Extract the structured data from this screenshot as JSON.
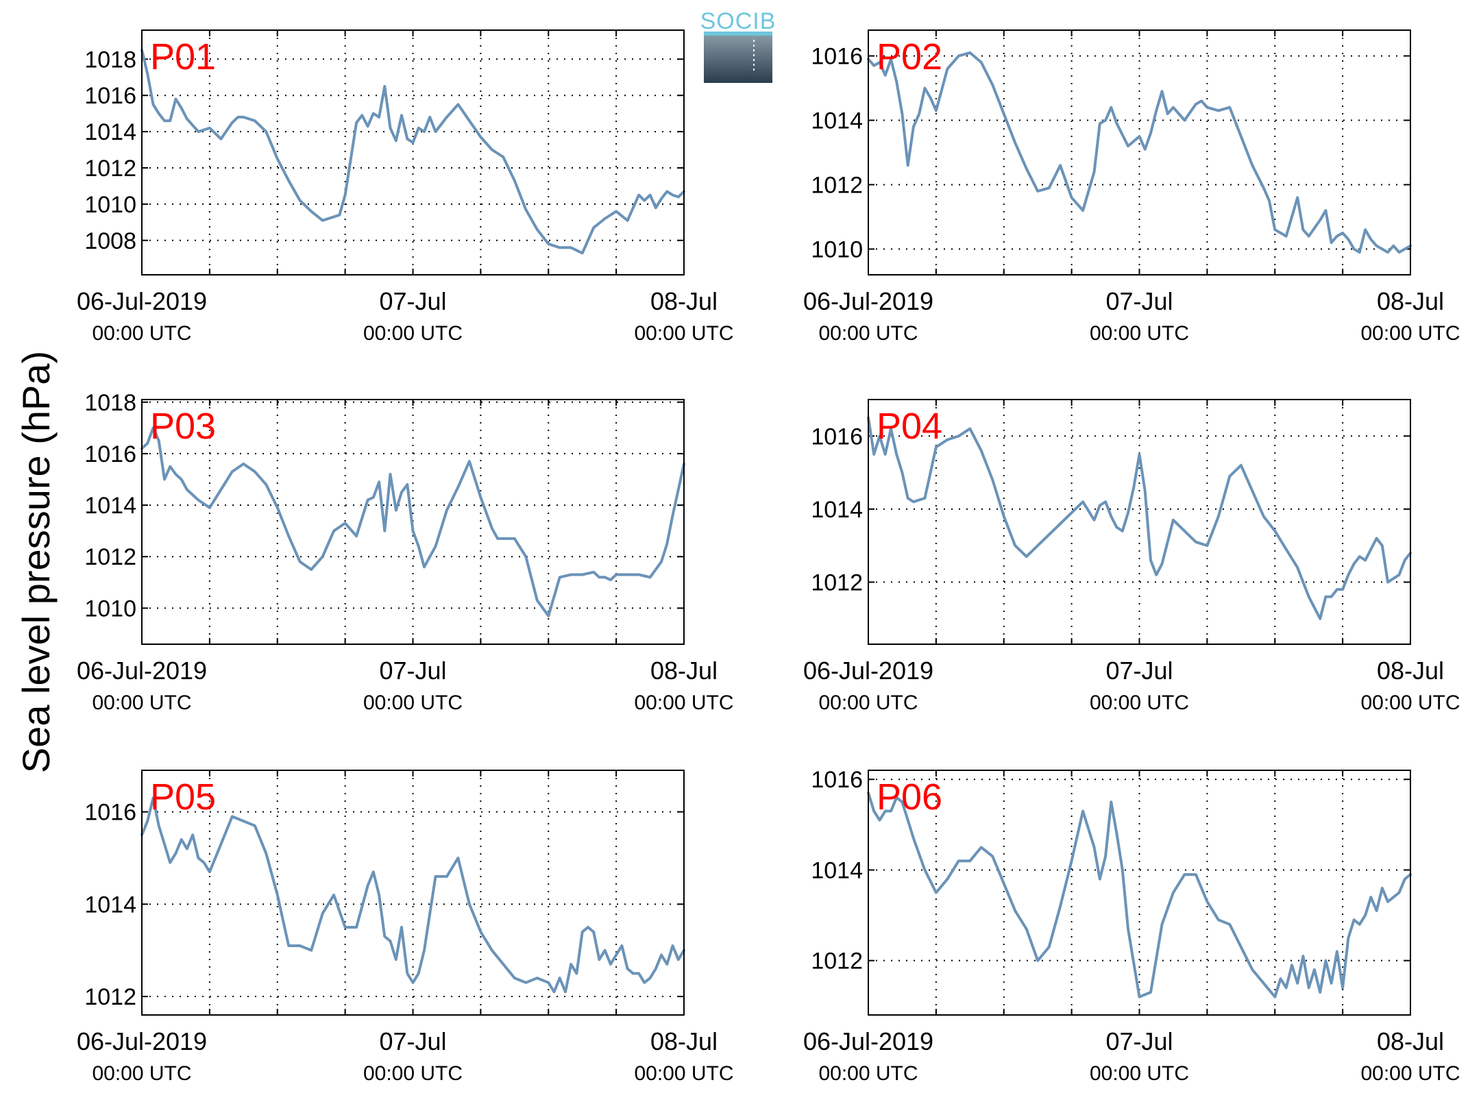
{
  "figure": {
    "ylabel": "Sea level pressure (hPa)",
    "logo_text": "SOCIB",
    "line_color": "#6b93b8",
    "title_color": "#ff0000"
  },
  "chart_data": [
    {
      "type": "line",
      "title": "P01",
      "x_unit": "hours since 06-Jul-2019 00:00 UTC",
      "xlim": [
        0,
        48
      ],
      "ylim": [
        1006.1,
        1019.6
      ],
      "yticks": [
        1008,
        1010,
        1012,
        1014,
        1016,
        1018
      ],
      "xtick_labels": [
        {
          "line1": "06-Jul-2019",
          "line2": "00:00 UTC"
        },
        {
          "line1": "07-Jul",
          "line2": "00:00 UTC"
        },
        {
          "line1": "08-Jul",
          "line2": "00:00 UTC"
        }
      ],
      "grid": true,
      "series": [
        {
          "x": [
            0,
            0.5,
            1,
            1.5,
            2,
            2.5,
            3,
            3.5,
            4,
            5,
            6,
            7,
            8,
            8.5,
            9,
            10,
            11,
            12,
            13,
            14,
            15,
            16,
            17,
            17.5,
            18,
            19,
            19.5,
            20,
            20.5,
            21,
            21.5,
            22,
            22.5,
            23,
            23.5,
            24,
            24.5,
            25,
            25.5,
            26,
            27,
            28,
            29,
            30,
            31,
            32,
            33,
            34,
            35,
            36,
            37,
            38,
            39,
            40,
            41,
            42,
            43,
            44,
            44.5,
            45,
            45.5,
            46,
            46.5,
            47,
            47.5,
            48
          ],
          "y": [
            1018.5,
            1017.2,
            1015.5,
            1015,
            1014.6,
            1014.6,
            1015.8,
            1015.3,
            1014.7,
            1014,
            1014.2,
            1013.6,
            1014.5,
            1014.8,
            1014.8,
            1014.6,
            1014,
            1012.5,
            1011.3,
            1010.2,
            1009.6,
            1009.1,
            1009.3,
            1009.4,
            1010.5,
            1014.5,
            1014.9,
            1014.3,
            1015,
            1014.8,
            1016.5,
            1014.2,
            1013.5,
            1014.9,
            1013.6,
            1013.4,
            1014.2,
            1014,
            1014.8,
            1014,
            1014.8,
            1015.5,
            1014.6,
            1013.7,
            1013,
            1012.6,
            1011.3,
            1009.7,
            1008.6,
            1007.8,
            1007.6,
            1007.6,
            1007.3,
            1008.7,
            1009.2,
            1009.6,
            1009.1,
            1010.5,
            1010.2,
            1010.5,
            1009.8,
            1010.3,
            1010.7,
            1010.5,
            1010.4,
            1010.7
          ]
        }
      ]
    },
    {
      "type": "line",
      "title": "P02",
      "x_unit": "hours since 06-Jul-2019 00:00 UTC",
      "xlim": [
        0,
        48
      ],
      "ylim": [
        1009.2,
        1016.8
      ],
      "yticks": [
        1010,
        1012,
        1014,
        1016
      ],
      "xtick_labels": [
        {
          "line1": "06-Jul-2019",
          "line2": "00:00 UTC"
        },
        {
          "line1": "07-Jul",
          "line2": "00:00 UTC"
        },
        {
          "line1": "08-Jul",
          "line2": "00:00 UTC"
        }
      ],
      "grid": true,
      "series": [
        {
          "x": [
            0,
            0.5,
            1,
            1.5,
            2,
            2.5,
            3,
            3.5,
            4,
            4.5,
            5,
            5.5,
            6,
            7,
            8,
            9,
            10,
            11,
            12,
            13,
            14,
            15,
            16,
            17,
            18,
            19,
            20,
            20.5,
            21,
            21.5,
            22,
            23,
            24,
            24.5,
            25,
            25.5,
            26,
            26.5,
            27,
            28,
            29,
            29.5,
            30,
            31,
            32,
            33,
            34,
            35,
            35.5,
            36,
            36.5,
            37,
            38,
            38.5,
            39,
            40,
            40.5,
            41,
            41.5,
            42,
            42.5,
            43,
            43.5,
            44,
            44.5,
            45,
            45.5,
            46,
            46.5,
            47,
            47.5,
            48
          ],
          "y": [
            1015.9,
            1015.7,
            1015.8,
            1015.4,
            1015.9,
            1015.2,
            1014.2,
            1012.6,
            1013.8,
            1014.2,
            1015,
            1014.7,
            1014.3,
            1015.6,
            1016,
            1016.1,
            1015.8,
            1015.1,
            1014.2,
            1013.3,
            1012.5,
            1011.8,
            1011.9,
            1012.6,
            1011.6,
            1011.2,
            1012.4,
            1013.9,
            1014,
            1014.4,
            1013.9,
            1013.2,
            1013.5,
            1013.1,
            1013.6,
            1014.3,
            1014.9,
            1014.2,
            1014.4,
            1014,
            1014.5,
            1014.6,
            1014.4,
            1014.3,
            1014.4,
            1013.5,
            1012.6,
            1011.9,
            1011.5,
            1010.6,
            1010.5,
            1010.4,
            1011.6,
            1010.6,
            1010.4,
            1010.9,
            1011.2,
            1010.2,
            1010.4,
            1010.5,
            1010.3,
            1010,
            1009.9,
            1010.6,
            1010.3,
            1010.1,
            1010,
            1009.9,
            1010.1,
            1009.9,
            1010,
            1010.1
          ]
        }
      ]
    },
    {
      "type": "line",
      "title": "P03",
      "x_unit": "hours since 06-Jul-2019 00:00 UTC",
      "xlim": [
        0,
        48
      ],
      "ylim": [
        1008.6,
        1018.1
      ],
      "yticks": [
        1010,
        1012,
        1014,
        1016,
        1018
      ],
      "xtick_labels": [
        {
          "line1": "06-Jul-2019",
          "line2": "00:00 UTC"
        },
        {
          "line1": "07-Jul",
          "line2": "00:00 UTC"
        },
        {
          "line1": "08-Jul",
          "line2": "00:00 UTC"
        }
      ],
      "grid": true,
      "series": [
        {
          "x": [
            0,
            0.5,
            1,
            1.5,
            2,
            2.5,
            3,
            3.5,
            4,
            5,
            6,
            7,
            8,
            9,
            10,
            11,
            12,
            13,
            14,
            15,
            16,
            17,
            18,
            19,
            19.5,
            20,
            20.5,
            21,
            21.5,
            22,
            22.5,
            23,
            23.5,
            24,
            24.5,
            25,
            26,
            27,
            28,
            29,
            30,
            31,
            31.5,
            32,
            33,
            34,
            35,
            36,
            37,
            38,
            39,
            40,
            40.5,
            41,
            41.5,
            42,
            43,
            44,
            45,
            45.5,
            46,
            46.5,
            47,
            47.5,
            48
          ],
          "y": [
            1016.2,
            1016.4,
            1017,
            1016.5,
            1015,
            1015.5,
            1015.2,
            1015,
            1014.6,
            1014.2,
            1013.9,
            1014.6,
            1015.3,
            1015.6,
            1015.3,
            1014.8,
            1013.9,
            1012.8,
            1011.8,
            1011.5,
            1012,
            1013,
            1013.3,
            1012.8,
            1013.5,
            1014.2,
            1014.3,
            1014.9,
            1013,
            1015.2,
            1013.8,
            1014.5,
            1014.8,
            1013,
            1012.4,
            1011.6,
            1012.4,
            1013.8,
            1014.7,
            1015.7,
            1014.3,
            1013.1,
            1012.7,
            1012.7,
            1012.7,
            1012,
            1010.3,
            1009.7,
            1011.2,
            1011.3,
            1011.3,
            1011.4,
            1011.2,
            1011.2,
            1011.1,
            1011.3,
            1011.3,
            1011.3,
            1011.2,
            1011.5,
            1011.8,
            1012.5,
            1013.6,
            1014.6,
            1015.6
          ]
        }
      ]
    },
    {
      "type": "line",
      "title": "P04",
      "x_unit": "hours since 06-Jul-2019 00:00 UTC",
      "xlim": [
        0,
        48
      ],
      "ylim": [
        1010.3,
        1017.0
      ],
      "yticks": [
        1012,
        1014,
        1016
      ],
      "xtick_labels": [
        {
          "line1": "06-Jul-2019",
          "line2": "00:00 UTC"
        },
        {
          "line1": "07-Jul",
          "line2": "00:00 UTC"
        },
        {
          "line1": "08-Jul",
          "line2": "00:00 UTC"
        }
      ],
      "grid": true,
      "series": [
        {
          "x": [
            0,
            0.5,
            1,
            1.5,
            2,
            2.5,
            3,
            3.5,
            4,
            5,
            6,
            7,
            8,
            9,
            10,
            11,
            12,
            13,
            14,
            15,
            16,
            17,
            18,
            19,
            20,
            20.5,
            21,
            21.5,
            22,
            22.5,
            23,
            23.5,
            24,
            24.5,
            25,
            25.5,
            26,
            27,
            28,
            29,
            30,
            31,
            32,
            33,
            34,
            35,
            36,
            37,
            38,
            38.5,
            39,
            39.5,
            40,
            40.5,
            41,
            41.5,
            42,
            42.5,
            43,
            43.5,
            44,
            44.5,
            45,
            45.5,
            46,
            46.5,
            47,
            47.5,
            48
          ],
          "y": [
            1016.5,
            1015.5,
            1016,
            1015.5,
            1016.2,
            1015.5,
            1015,
            1014.3,
            1014.2,
            1014.3,
            1015.7,
            1015.9,
            1016,
            1016.2,
            1015.6,
            1014.8,
            1013.8,
            1013,
            1012.7,
            1013,
            1013.3,
            1013.6,
            1013.9,
            1014.2,
            1013.7,
            1014.1,
            1014.2,
            1013.8,
            1013.5,
            1013.4,
            1013.9,
            1014.6,
            1015.5,
            1014.5,
            1012.6,
            1012.2,
            1012.5,
            1013.7,
            1013.4,
            1013.1,
            1013,
            1013.8,
            1014.9,
            1015.2,
            1014.5,
            1013.8,
            1013.4,
            1012.9,
            1012.4,
            1012,
            1011.6,
            1011.3,
            1011,
            1011.6,
            1011.6,
            1011.8,
            1011.8,
            1012.2,
            1012.5,
            1012.7,
            1012.6,
            1012.9,
            1013.2,
            1013,
            1012,
            1012.1,
            1012.2,
            1012.6,
            1012.8
          ]
        }
      ]
    },
    {
      "type": "line",
      "title": "P05",
      "x_unit": "hours since 06-Jul-2019 00:00 UTC",
      "xlim": [
        0,
        48
      ],
      "ylim": [
        1011.6,
        1016.9
      ],
      "yticks": [
        1012,
        1014,
        1016
      ],
      "xtick_labels": [
        {
          "line1": "06-Jul-2019",
          "line2": "00:00 UTC"
        },
        {
          "line1": "07-Jul",
          "line2": "00:00 UTC"
        },
        {
          "line1": "08-Jul",
          "line2": "00:00 UTC"
        }
      ],
      "grid": true,
      "series": [
        {
          "x": [
            0,
            0.5,
            1,
            1.5,
            2,
            2.5,
            3,
            3.5,
            4,
            4.5,
            5,
            5.5,
            6,
            7,
            8,
            9,
            10,
            11,
            12,
            13,
            14,
            15,
            16,
            17,
            18,
            19,
            20,
            20.5,
            21,
            21.5,
            22,
            22.5,
            23,
            23.5,
            24,
            24.5,
            25,
            26,
            27,
            28,
            29,
            30,
            31,
            32,
            33,
            34,
            35,
            36,
            36.5,
            37,
            37.5,
            38,
            38.5,
            39,
            39.5,
            40,
            40.5,
            41,
            41.5,
            42,
            42.5,
            43,
            43.5,
            44,
            44.5,
            45,
            45.5,
            46,
            46.5,
            47,
            47.5,
            48
          ],
          "y": [
            1015.5,
            1015.8,
            1016.3,
            1015.7,
            1015.3,
            1014.9,
            1015.1,
            1015.4,
            1015.2,
            1015.5,
            1015,
            1014.9,
            1014.7,
            1015.3,
            1015.9,
            1015.8,
            1015.7,
            1015.1,
            1014.2,
            1013.1,
            1013.1,
            1013,
            1013.8,
            1014.2,
            1013.5,
            1013.5,
            1014.4,
            1014.7,
            1014.2,
            1013.3,
            1013.2,
            1012.8,
            1013.5,
            1012.5,
            1012.3,
            1012.5,
            1013,
            1014.6,
            1014.6,
            1015,
            1014,
            1013.4,
            1013,
            1012.7,
            1012.4,
            1012.3,
            1012.4,
            1012.3,
            1012.1,
            1012.4,
            1012.1,
            1012.7,
            1012.5,
            1013.4,
            1013.5,
            1013.4,
            1012.8,
            1013,
            1012.7,
            1012.9,
            1013.1,
            1012.6,
            1012.5,
            1012.5,
            1012.3,
            1012.4,
            1012.6,
            1012.9,
            1012.7,
            1013.1,
            1012.8,
            1013
          ]
        }
      ]
    },
    {
      "type": "line",
      "title": "P06",
      "x_unit": "hours since 06-Jul-2019 00:00 UTC",
      "xlim": [
        0,
        48
      ],
      "ylim": [
        1010.8,
        1016.2
      ],
      "yticks": [
        1012,
        1014,
        1016
      ],
      "xtick_labels": [
        {
          "line1": "06-Jul-2019",
          "line2": "00:00 UTC"
        },
        {
          "line1": "07-Jul",
          "line2": "00:00 UTC"
        },
        {
          "line1": "08-Jul",
          "line2": "00:00 UTC"
        }
      ],
      "grid": true,
      "series": [
        {
          "x": [
            0,
            0.5,
            1,
            1.5,
            2,
            2.5,
            3,
            3.5,
            4,
            5,
            6,
            7,
            8,
            9,
            10,
            11,
            12,
            13,
            14,
            15,
            16,
            17,
            18,
            19,
            20,
            20.5,
            21,
            21.5,
            22,
            22.5,
            23,
            24,
            25,
            26,
            27,
            28,
            29,
            30,
            31,
            32,
            33,
            34,
            35,
            36,
            36.5,
            37,
            37.5,
            38,
            38.5,
            39,
            39.5,
            40,
            40.5,
            41,
            41.5,
            42,
            42.5,
            43,
            43.5,
            44,
            44.5,
            45,
            45.5,
            46,
            46.5,
            47,
            47.5,
            48
          ],
          "y": [
            1015.7,
            1015.3,
            1015.1,
            1015.3,
            1015.3,
            1015.6,
            1015.5,
            1015.1,
            1014.7,
            1014,
            1013.5,
            1013.8,
            1014.2,
            1014.2,
            1014.5,
            1014.3,
            1013.7,
            1013.1,
            1012.7,
            1012,
            1012.3,
            1013.2,
            1014.2,
            1015.3,
            1014.5,
            1013.8,
            1014.3,
            1015.5,
            1014.8,
            1014,
            1012.7,
            1011.2,
            1011.3,
            1012.8,
            1013.5,
            1013.9,
            1013.9,
            1013.3,
            1012.9,
            1012.8,
            1012.3,
            1011.8,
            1011.5,
            1011.2,
            1011.6,
            1011.4,
            1011.9,
            1011.5,
            1012.1,
            1011.4,
            1011.8,
            1011.3,
            1012,
            1011.5,
            1012.2,
            1011.4,
            1012.5,
            1012.9,
            1012.8,
            1013,
            1013.4,
            1013.1,
            1013.6,
            1013.3,
            1013.4,
            1013.5,
            1013.8,
            1013.9
          ]
        }
      ]
    }
  ]
}
